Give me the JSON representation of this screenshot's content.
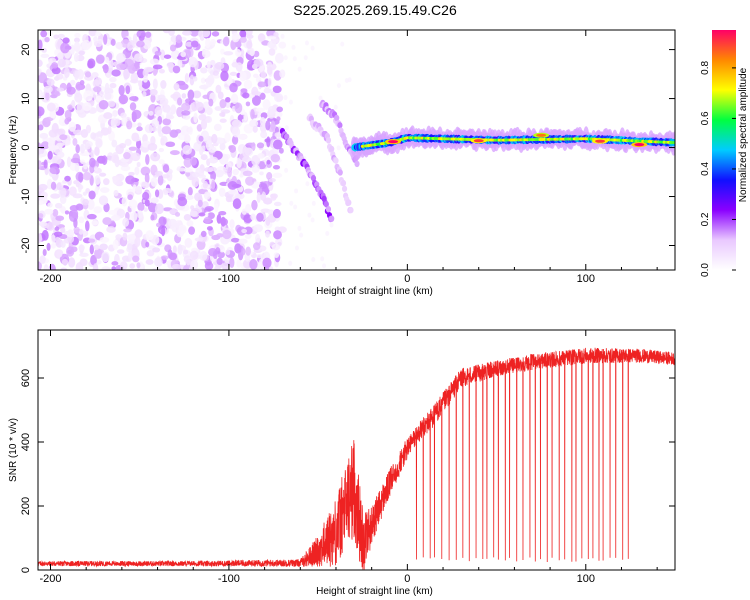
{
  "title": "S225.2025.269.15.49.C26",
  "chart_data": [
    {
      "type": "heatmap",
      "title": "S225.2025.269.15.49.C26",
      "xlabel": "Height of straight line (km)",
      "ylabel": "Frequency (Hz)",
      "xlim": [
        -207,
        150
      ],
      "ylim": [
        -25,
        24
      ],
      "xticks": [
        -200,
        -100,
        0,
        100
      ],
      "yticks": [
        -20,
        -10,
        0,
        10,
        20
      ],
      "colorbar": {
        "label": "Normalized spectral amplitude",
        "range": [
          0,
          0.95
        ],
        "ticks": [
          0,
          0.2,
          0.4,
          0.6,
          0.8
        ],
        "colors": [
          "#ffffff",
          "#e9c8ff",
          "#8a00ff",
          "#1010ff",
          "#00ccff",
          "#00ff40",
          "#ffff00",
          "#ff8800",
          "#ff0066"
        ]
      },
      "features": [
        {
          "name": "noise-field",
          "x_range": [
            -207,
            -70
          ],
          "freq_range": [
            -25,
            24
          ],
          "amplitude": 0.05
        },
        {
          "name": "chirp-branch-1",
          "points": [
            [
              -70,
              3
            ],
            [
              -60,
              -2
            ],
            [
              -50,
              -8
            ],
            [
              -42,
              -15
            ]
          ],
          "amplitude": 0.2
        },
        {
          "name": "chirp-branch-2",
          "points": [
            [
              -55,
              6
            ],
            [
              -45,
              2
            ],
            [
              -38,
              -5
            ],
            [
              -31,
              -14
            ]
          ],
          "amplitude": 0.12
        },
        {
          "name": "chirp-branch-3",
          "points": [
            [
              -48,
              9
            ],
            [
              -40,
              6
            ],
            [
              -33,
              0
            ],
            [
              -28,
              -3
            ]
          ],
          "amplitude": 0.15
        },
        {
          "name": "tone-ridge",
          "points": [
            [
              -30,
              0
            ],
            [
              -10,
              1
            ],
            [
              0,
              2
            ],
            [
              50,
              1.5
            ],
            [
              100,
              1.8
            ],
            [
              150,
              1
            ]
          ],
          "amplitude": 0.55
        },
        {
          "name": "peak-1",
          "x": -8,
          "freq": 1.2,
          "amplitude": 0.95
        },
        {
          "name": "peak-2",
          "x": 40,
          "freq": 1.4,
          "amplitude": 0.9
        },
        {
          "name": "peak-3",
          "x": 75,
          "freq": 2.5,
          "amplitude": 0.85
        },
        {
          "name": "peak-4",
          "x": 108,
          "freq": 1.3,
          "amplitude": 0.9
        },
        {
          "name": "peak-5",
          "x": 130,
          "freq": 0.6,
          "amplitude": 0.95
        }
      ]
    },
    {
      "type": "line",
      "xlabel": "Height of straight line (km)",
      "ylabel": "SNR (10 * v/v)",
      "xlim": [
        -207,
        150
      ],
      "ylim": [
        0,
        750
      ],
      "xticks": [
        -200,
        -100,
        0,
        100
      ],
      "yticks": [
        0,
        200,
        400,
        600
      ],
      "series": [
        {
          "name": "SNR",
          "color": "#ee2222",
          "x": [
            -207,
            -120,
            -60,
            -50,
            -40,
            -30,
            -25,
            -20,
            -10,
            0,
            5,
            10,
            20,
            30,
            50,
            70,
            100,
            130,
            150
          ],
          "values": [
            20,
            20,
            22,
            60,
            120,
            260,
            90,
            140,
            270,
            380,
            420,
            450,
            520,
            600,
            630,
            650,
            670,
            670,
            660
          ],
          "jitter": [
            8,
            8,
            12,
            50,
            110,
            160,
            110,
            60,
            45,
            35,
            30,
            35,
            35,
            30,
            25,
            25,
            25,
            22,
            20
          ],
          "dropouts": {
            "x_range": [
              5,
              125
            ],
            "every_km": 3.2,
            "min_value": 25
          }
        }
      ]
    }
  ]
}
